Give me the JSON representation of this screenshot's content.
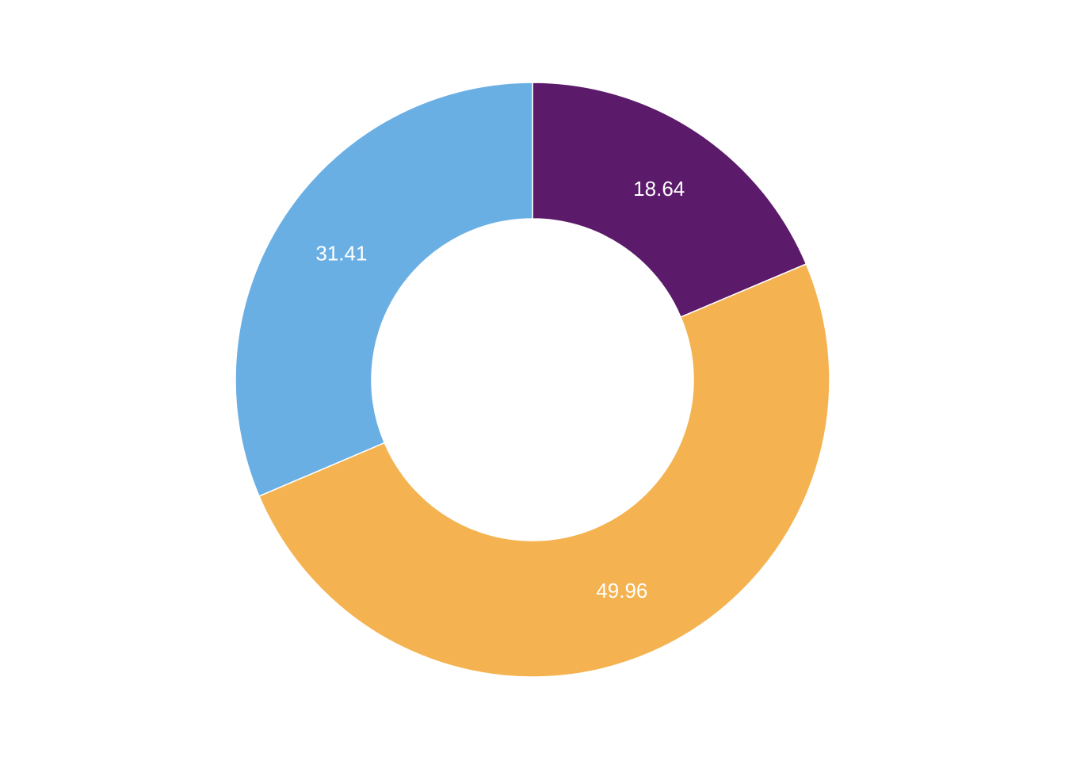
{
  "chart_data": {
    "type": "pie",
    "style": "donut",
    "title": "",
    "start_angle_deg": 0,
    "direction": "clockwise",
    "slices": [
      {
        "value": 18.64,
        "label": "18.64",
        "color": "#5B1A6A"
      },
      {
        "value": 49.96,
        "label": "49.96",
        "color": "#F4B350"
      },
      {
        "value": 31.41,
        "label": "31.41",
        "color": "#6AAFE4"
      }
    ],
    "legend": "none"
  }
}
